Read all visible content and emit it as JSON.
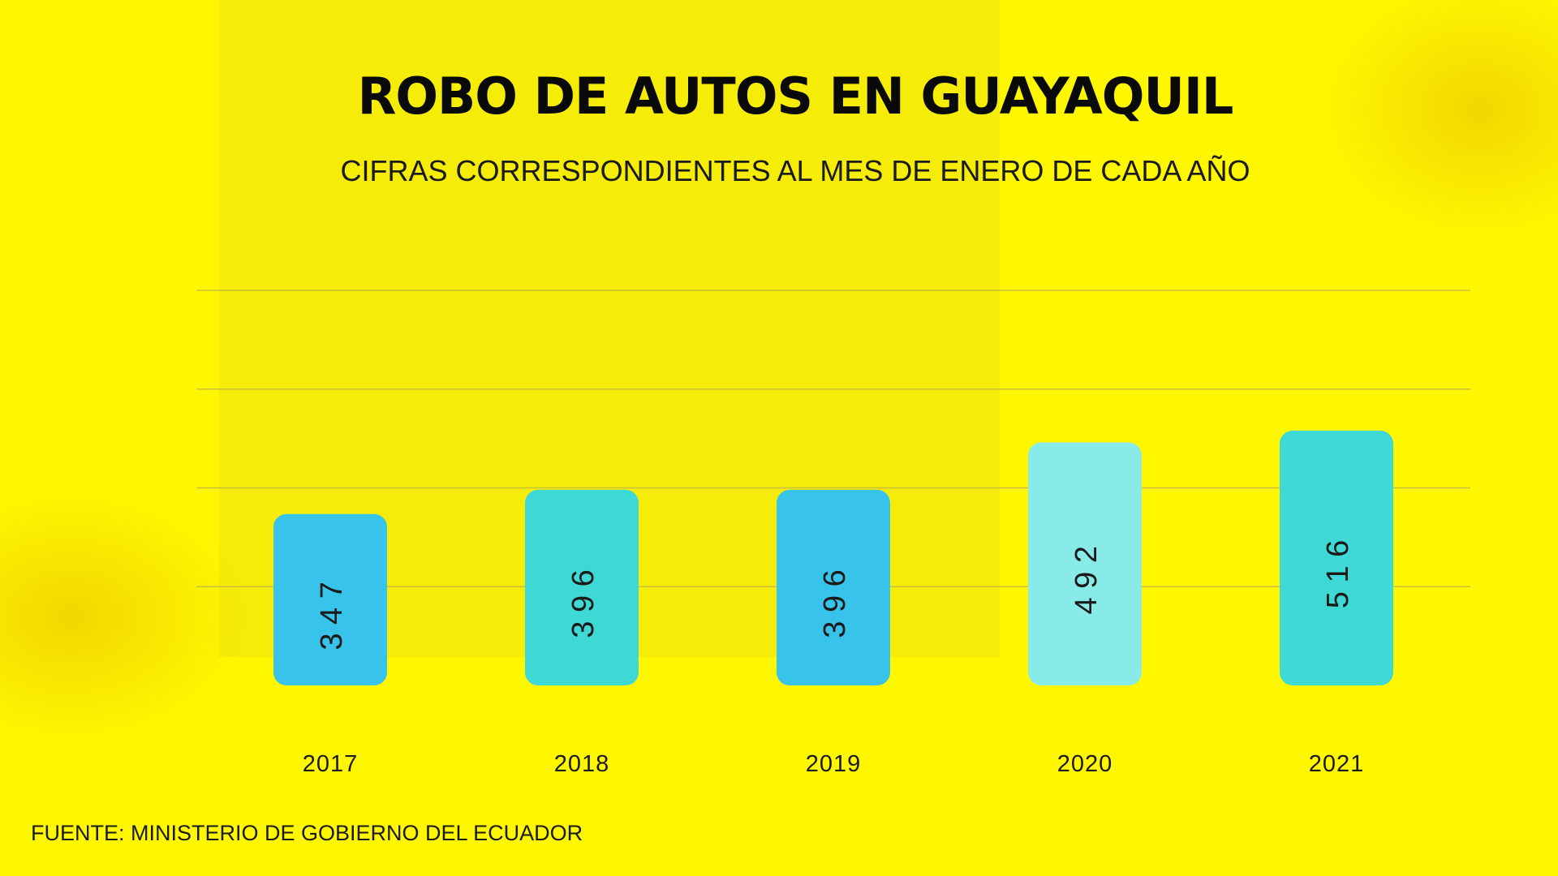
{
  "title": "ROBO DE AUTOS EN GUAYAQUIL",
  "subtitle": "CIFRAS CORRESPONDIENTES AL MES DE ENERO DE CADA AÑO",
  "source": "FUENTE: MINISTERIO DE GOBIERNO DEL ECUADOR",
  "colors": {
    "background": "#fff700",
    "gridline": "#c9bf3c",
    "text": "#1a1a1a"
  },
  "chart_data": {
    "type": "bar",
    "categories": [
      "2017",
      "2018",
      "2019",
      "2020",
      "2021"
    ],
    "values": [
      347,
      396,
      396,
      492,
      516
    ],
    "value_labels": [
      "3 4 7",
      "3 9 6",
      "3 9 6",
      "4 9 2",
      "5 1 6"
    ],
    "bar_colors": [
      "#38c4ea",
      "#3fd9d5",
      "#38c4ea",
      "#88ebe8",
      "#3fd9d5"
    ],
    "title": "ROBO DE AUTOS EN GUAYAQUIL",
    "xlabel": "",
    "ylabel": "",
    "ylim": [
      0,
      800
    ],
    "grid": true,
    "legend": "none"
  }
}
